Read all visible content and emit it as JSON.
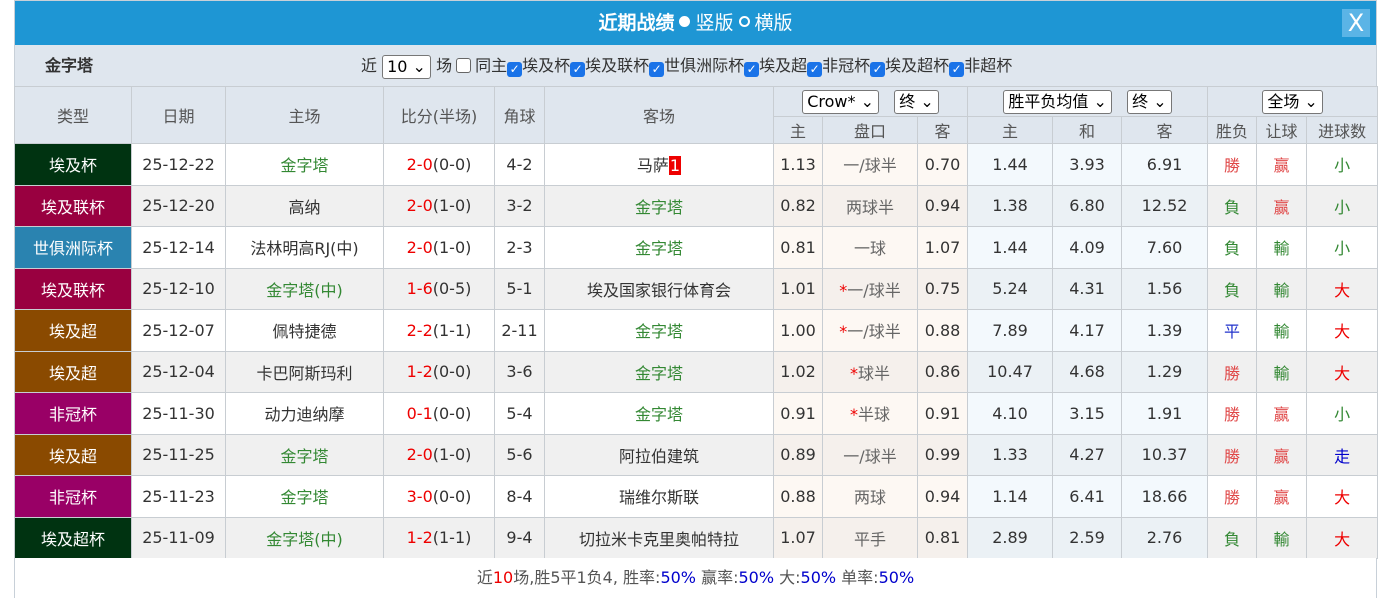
{
  "title": "近期战绩",
  "view_options": [
    "竖版",
    "横版"
  ],
  "close_label": "X",
  "filter": {
    "team": "金字塔",
    "near": "近",
    "count": "10",
    "unit": "场",
    "same_home": "同主",
    "leagues": [
      "埃及杯",
      "埃及联杯",
      "世俱洲际杯",
      "埃及超",
      "非冠杯",
      "埃及超杯",
      "非超杯"
    ]
  },
  "headers": {
    "type": "类型",
    "date": "日期",
    "home": "主场",
    "score": "比分(半场)",
    "corner": "角球",
    "away": "客场",
    "company": "Crow*",
    "hc_stage": "终",
    "ox_type": "胜平负均值",
    "ox_stage": "终",
    "period": "全场",
    "sub": [
      "主",
      "盘口",
      "客",
      "主",
      "和",
      "客",
      "胜负",
      "让球",
      "进球数"
    ]
  },
  "colors": {
    "埃及杯": "#003311",
    "埃及联杯": "#990040",
    "世俱洲际杯": "#2a83b0",
    "埃及超": "#8a4a00",
    "非冠杯": "#990066",
    "埃及超杯": "#003311"
  },
  "rows": [
    {
      "type": "埃及杯",
      "date": "25-12-22",
      "home": "金字塔",
      "home_green": true,
      "ft": "2-0",
      "ht": "(0-0)",
      "corner": "4-2",
      "away": "马萨",
      "away_badge": "1",
      "away_green": false,
      "h": "1.13",
      "line": "一/球半",
      "star": false,
      "a": "0.70",
      "w": "1.44",
      "d": "3.93",
      "l": "6.91",
      "res": "勝",
      "hcr": "赢",
      "ou": "小"
    },
    {
      "type": "埃及联杯",
      "date": "25-12-20",
      "home": "高纳",
      "home_green": false,
      "ft": "2-0",
      "ht": "(1-0)",
      "corner": "3-2",
      "away": "金字塔",
      "away_green": true,
      "h": "0.82",
      "line": "两球半",
      "star": false,
      "a": "0.94",
      "w": "1.38",
      "d": "6.80",
      "l": "12.52",
      "res": "負",
      "hcr": "赢",
      "ou": "小"
    },
    {
      "type": "世俱洲际杯",
      "date": "25-12-14",
      "home": "法林明高RJ(中)",
      "home_green": false,
      "ft": "2-0",
      "ht": "(1-0)",
      "corner": "2-3",
      "away": "金字塔",
      "away_green": true,
      "h": "0.81",
      "line": "一球",
      "star": false,
      "a": "1.07",
      "w": "1.44",
      "d": "4.09",
      "l": "7.60",
      "res": "負",
      "hcr": "輸",
      "ou": "小"
    },
    {
      "type": "埃及联杯",
      "date": "25-12-10",
      "home": "金字塔(中)",
      "home_green": true,
      "ft": "1-6",
      "ht": "(0-5)",
      "corner": "5-1",
      "away": "埃及国家银行体育会",
      "away_green": false,
      "h": "1.01",
      "line": "一/球半",
      "star": true,
      "a": "0.75",
      "w": "5.24",
      "d": "4.31",
      "l": "1.56",
      "res": "負",
      "hcr": "輸",
      "ou": "大"
    },
    {
      "type": "埃及超",
      "date": "25-12-07",
      "home": "佩特捷德",
      "home_green": false,
      "ft": "2-2",
      "ht": "(1-1)",
      "corner": "2-11",
      "away": "金字塔",
      "away_green": true,
      "h": "1.00",
      "line": "一/球半",
      "star": true,
      "a": "0.88",
      "w": "7.89",
      "d": "4.17",
      "l": "1.39",
      "res": "平",
      "hcr": "輸",
      "ou": "大"
    },
    {
      "type": "埃及超",
      "date": "25-12-04",
      "home": "卡巴阿斯玛利",
      "home_green": false,
      "ft": "1-2",
      "ht": "(0-0)",
      "corner": "3-6",
      "away": "金字塔",
      "away_green": true,
      "h": "1.02",
      "line": "球半",
      "star": true,
      "a": "0.86",
      "w": "10.47",
      "d": "4.68",
      "l": "1.29",
      "res": "勝",
      "hcr": "輸",
      "ou": "大"
    },
    {
      "type": "非冠杯",
      "date": "25-11-30",
      "home": "动力迪纳摩",
      "home_green": false,
      "ft": "0-1",
      "ht": "(0-0)",
      "corner": "5-4",
      "away": "金字塔",
      "away_green": true,
      "h": "0.91",
      "line": "半球",
      "star": true,
      "a": "0.91",
      "w": "4.10",
      "d": "3.15",
      "l": "1.91",
      "res": "勝",
      "hcr": "赢",
      "ou": "小"
    },
    {
      "type": "埃及超",
      "date": "25-11-25",
      "home": "金字塔",
      "home_green": true,
      "ft": "2-0",
      "ht": "(1-0)",
      "corner": "5-6",
      "away": "阿拉伯建筑",
      "away_green": false,
      "h": "0.89",
      "line": "一/球半",
      "star": false,
      "a": "0.99",
      "w": "1.33",
      "d": "4.27",
      "l": "10.37",
      "res": "勝",
      "hcr": "赢",
      "ou": "走"
    },
    {
      "type": "非冠杯",
      "date": "25-11-23",
      "home": "金字塔",
      "home_green": true,
      "ft": "3-0",
      "ht": "(0-0)",
      "corner": "8-4",
      "away": "瑞维尔斯联",
      "away_green": false,
      "h": "0.88",
      "line": "两球",
      "star": false,
      "a": "0.94",
      "w": "1.14",
      "d": "6.41",
      "l": "18.66",
      "res": "勝",
      "hcr": "赢",
      "ou": "大"
    },
    {
      "type": "埃及超杯",
      "date": "25-11-09",
      "home": "金字塔(中)",
      "home_green": true,
      "ft": "1-2",
      "ht": "(1-1)",
      "corner": "9-4",
      "away": "切拉米卡克里奥帕特拉",
      "away_green": false,
      "h": "1.07",
      "line": "平手",
      "star": false,
      "a": "0.81",
      "w": "2.89",
      "d": "2.59",
      "l": "2.76",
      "res": "負",
      "hcr": "輸",
      "ou": "大"
    }
  ],
  "summary": {
    "p1": "近",
    "n": "10",
    "p2": "场,胜5平1负4, 胜率:",
    "win": "50%",
    "p3": " 赢率:",
    "hc": "50%",
    "p4": " 大:",
    "big": "50%",
    "p5": " 单率:",
    "odd": "50%"
  }
}
